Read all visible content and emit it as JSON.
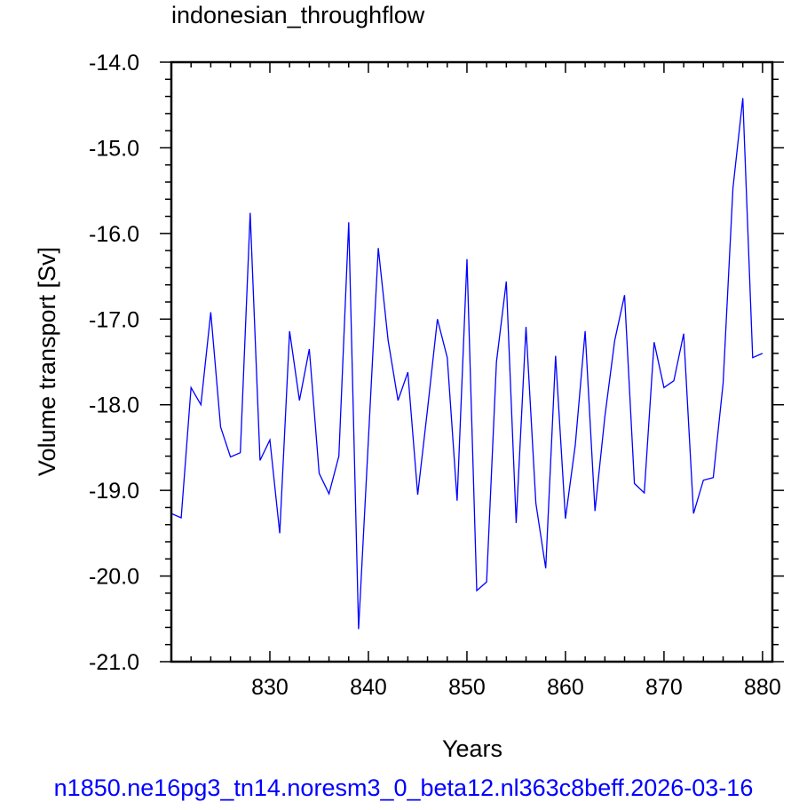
{
  "chart_data": {
    "type": "line",
    "title": "indonesian_throughflow",
    "xlabel": "Years",
    "ylabel": "Volume transport [Sv]",
    "xlim": [
      820,
      881
    ],
    "ylim": [
      -21.0,
      -14.0
    ],
    "x_ticks": [
      830,
      840,
      850,
      860,
      870,
      880
    ],
    "y_ticks": [
      -14.0,
      -15.0,
      -16.0,
      -17.0,
      -18.0,
      -19.0,
      -20.0,
      -21.0
    ],
    "x_tick_labels": [
      "830",
      "840",
      "850",
      "860",
      "870",
      "880"
    ],
    "y_tick_labels": [
      "-14.0",
      "-15.0",
      "-16.0",
      "-17.0",
      "-18.0",
      "-19.0",
      "-20.0",
      "-21.0"
    ],
    "grid": false,
    "line_color": "#0000ff",
    "series": [
      {
        "x": [
          820,
          821,
          822,
          823,
          824,
          825,
          826,
          827,
          828,
          829,
          830,
          831,
          832,
          833,
          834,
          835,
          836,
          837,
          838,
          839,
          840,
          841,
          842,
          843,
          844,
          845,
          846,
          847,
          848,
          849,
          850,
          851,
          852,
          853,
          854,
          855,
          856,
          857,
          858,
          859,
          860,
          861,
          862,
          863,
          864,
          865,
          866,
          867,
          868,
          869,
          870,
          871,
          872,
          873,
          874,
          875,
          876,
          877,
          878,
          879,
          880
        ],
        "values": [
          -19.27,
          -19.32,
          -17.8,
          -18.0,
          -16.92,
          -18.26,
          -18.61,
          -18.56,
          -15.76,
          -18.65,
          -18.41,
          -19.5,
          -17.14,
          -17.95,
          -17.35,
          -18.8,
          -19.04,
          -18.6,
          -15.87,
          -20.62,
          -18.4,
          -16.17,
          -17.25,
          -17.95,
          -17.62,
          -19.05,
          -18.05,
          -17.0,
          -17.45,
          -19.12,
          -16.3,
          -20.17,
          -20.07,
          -17.5,
          -16.56,
          -19.38,
          -17.09,
          -19.15,
          -19.91,
          -17.43,
          -19.33,
          -18.47,
          -17.14,
          -19.24,
          -18.14,
          -17.25,
          -16.72,
          -18.92,
          -19.03,
          -17.27,
          -17.8,
          -17.72,
          -17.17,
          -19.27,
          -18.88,
          -18.85,
          -17.75,
          -15.47,
          -14.42,
          -17.45,
          -17.4
        ]
      }
    ]
  },
  "footer_text": "n1850.ne16pg3_tn14.noresm3_0_beta12.nl363c8beff.2026-03-16"
}
